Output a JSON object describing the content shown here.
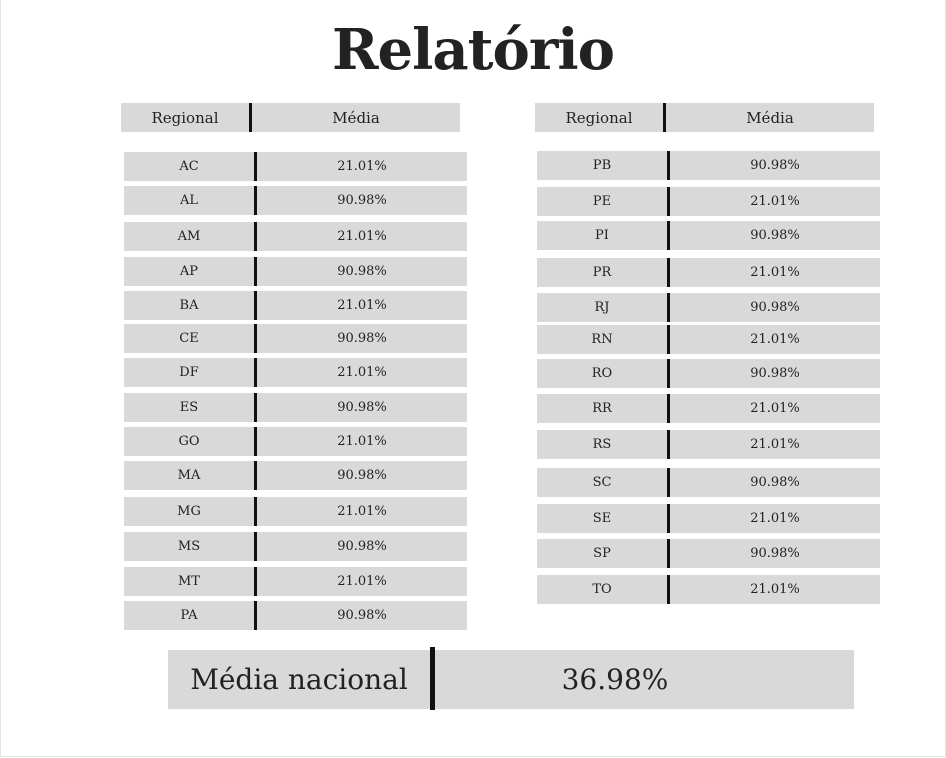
{
  "title": "Relatório",
  "header": {
    "regional": "Regional",
    "media": "Média"
  },
  "left_rows": [
    {
      "regional": "AC",
      "media": "21.01%"
    },
    {
      "regional": "AL",
      "media": "90.98%"
    },
    {
      "regional": "AM",
      "media": "21.01%"
    },
    {
      "regional": "AP",
      "media": "90.98%"
    },
    {
      "regional": "BA",
      "media": "21.01%"
    },
    {
      "regional": "CE",
      "media": "90.98%"
    },
    {
      "regional": "DF",
      "media": "21.01%"
    },
    {
      "regional": "ES",
      "media": "90.98%"
    },
    {
      "regional": "GO",
      "media": "21.01%"
    },
    {
      "regional": "MA",
      "media": "90.98%"
    },
    {
      "regional": "MG",
      "media": "21.01%"
    },
    {
      "regional": "MS",
      "media": "90.98%"
    },
    {
      "regional": "MT",
      "media": "21.01%"
    },
    {
      "regional": "PA",
      "media": "90.98%"
    }
  ],
  "right_rows": [
    {
      "regional": "PB",
      "media": "90.98%"
    },
    {
      "regional": "PE",
      "media": "21.01%"
    },
    {
      "regional": "PI",
      "media": "90.98%"
    },
    {
      "regional": "PR",
      "media": "21.01%"
    },
    {
      "regional": "RJ",
      "media": "90.98%"
    },
    {
      "regional": "RN",
      "media": "21.01%"
    },
    {
      "regional": "RO",
      "media": "90.98%"
    },
    {
      "regional": "RR",
      "media": "21.01%"
    },
    {
      "regional": "RS",
      "media": "21.01%"
    },
    {
      "regional": "SC",
      "media": "90.98%"
    },
    {
      "regional": "SE",
      "media": "21.01%"
    },
    {
      "regional": "SP",
      "media": "90.98%"
    },
    {
      "regional": "TO",
      "media": "21.01%"
    }
  ],
  "national": {
    "label": "Média nacional",
    "value": "36.98%"
  }
}
